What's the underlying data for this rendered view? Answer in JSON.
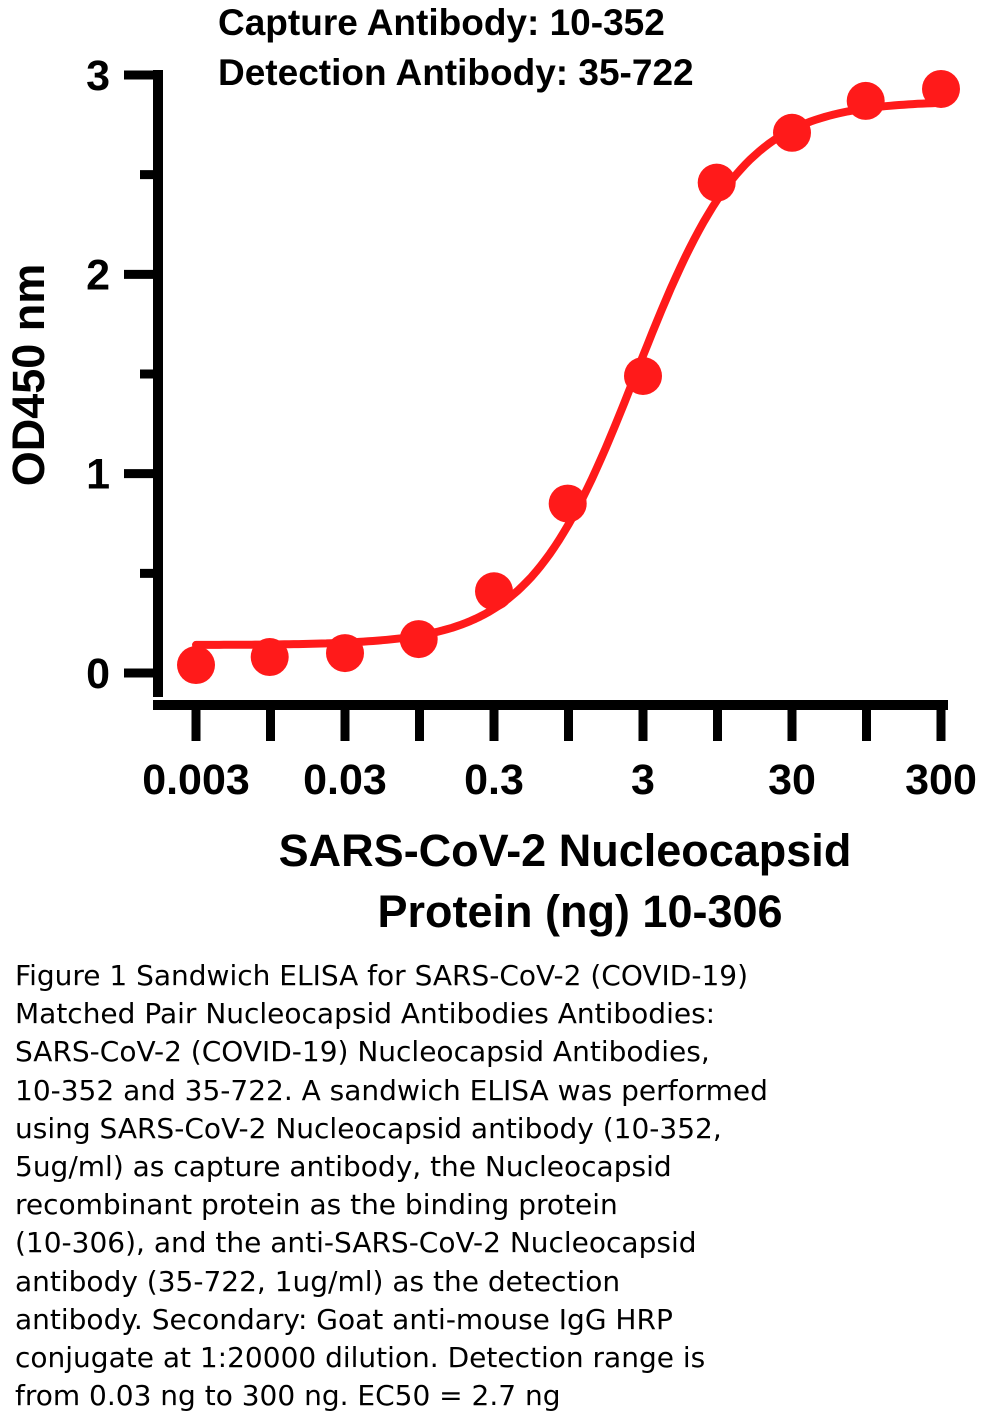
{
  "chart_data": {
    "type": "scatter",
    "title_lines": [
      "Capture Antibody: 10-352",
      "Detection Antibody: 35-722"
    ],
    "xlabel_lines": [
      "SARS-CoV-2 Nucleocapsid",
      "Protein (ng) 10-306"
    ],
    "ylabel": "OD450 nm",
    "x_scale": "log",
    "xlim": [
      0.003,
      300
    ],
    "ylim": [
      0,
      3
    ],
    "x_ticks": [
      0.003,
      0.03,
      0.3,
      3,
      30,
      300
    ],
    "x_tick_labels": [
      "0.003",
      "0.03",
      "0.3",
      "3",
      "30",
      "300"
    ],
    "y_ticks": [
      0,
      1,
      2,
      3
    ],
    "y_tick_labels": [
      "0",
      "1",
      "2",
      "3"
    ],
    "y_minor_ticks": [
      0.5,
      1.5,
      2.5
    ],
    "grid": false,
    "legend": "none",
    "color": "#ff1a1a",
    "series": [
      {
        "points": [
          {
            "x": 0.003,
            "y": 0.04
          },
          {
            "x": 0.00937,
            "y": 0.08
          },
          {
            "x": 0.03,
            "y": 0.1
          },
          {
            "x": 0.0937,
            "y": 0.17
          },
          {
            "x": 0.3,
            "y": 0.41
          },
          {
            "x": 0.937,
            "y": 0.85
          },
          {
            "x": 3,
            "y": 1.49
          },
          {
            "x": 9.37,
            "y": 2.46
          },
          {
            "x": 30,
            "y": 2.71
          },
          {
            "x": 93.7,
            "y": 2.87
          },
          {
            "x": 300,
            "y": 2.93
          }
        ],
        "fit_curve": {
          "model": "4PL",
          "bottom": 0.14,
          "top": 2.87,
          "ec50": 2.7,
          "hill": 1.2
        }
      }
    ]
  },
  "caption_lines": [
    "Figure 1 Sandwich ELISA for SARS-CoV-2 (COVID-19)",
    "Matched Pair Nucleocapsid Antibodies Antibodies:",
    "SARS-CoV-2 (COVID-19) Nucleocapsid Antibodies,",
    "10-352 and 35-722. A sandwich ELISA was performed",
    "using SARS-CoV-2 Nucleocapsid antibody (10-352,",
    "5ug/ml) as capture antibody, the Nucleocapsid",
    "recombinant protein as the binding protein",
    "(10-306), and the anti-SARS-CoV-2 Nucleocapsid",
    "antibody (35-722, 1ug/ml) as the detection",
    "antibody. Secondary: Goat anti-mouse IgG HRP",
    "conjugate at 1:20000 dilution. Detection range is",
    "from 0.03 ng to 300 ng. EC50 = 2.7 ng"
  ]
}
